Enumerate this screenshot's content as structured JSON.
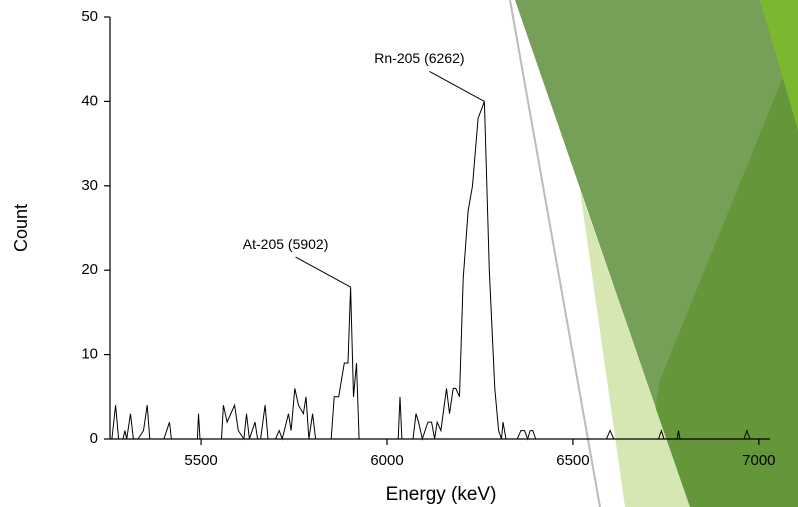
{
  "chart_data": {
    "type": "line",
    "xlabel": "Energy (keV)",
    "ylabel": "Count",
    "color": "#000000",
    "xlim": [
      5255,
      7030
    ],
    "ylim": [
      0,
      50
    ],
    "xticks": [
      5500,
      6000,
      6500,
      7000
    ],
    "yticks": [
      0,
      10,
      20,
      30,
      40,
      50
    ],
    "x": [
      5260,
      5270,
      5278,
      5290,
      5295,
      5300,
      5310,
      5318,
      5330,
      5345,
      5355,
      5362,
      5400,
      5415,
      5420,
      5490,
      5493,
      5497,
      5555,
      5560,
      5570,
      5590,
      5600,
      5615,
      5622,
      5630,
      5645,
      5652,
      5660,
      5672,
      5680,
      5700,
      5710,
      5718,
      5735,
      5742,
      5752,
      5762,
      5775,
      5782,
      5790,
      5800,
      5808,
      5850,
      5858,
      5870,
      5885,
      5895,
      5902,
      5910,
      5918,
      5925,
      5930,
      6030,
      6035,
      6040,
      6070,
      6078,
      6085,
      6095,
      6110,
      6120,
      6128,
      6135,
      6145,
      6160,
      6168,
      6178,
      6185,
      6195,
      6205,
      6218,
      6230,
      6245,
      6262,
      6275,
      6290,
      6300,
      6308,
      6312,
      6320,
      6350,
      6360,
      6370,
      6378,
      6385,
      6392,
      6400,
      6590,
      6600,
      6610,
      6730,
      6738,
      6745,
      6780,
      6784,
      6788,
      6960,
      6968,
      6976,
      7000
    ],
    "values": [
      0,
      4,
      0,
      0,
      1,
      0,
      3,
      0,
      0,
      1,
      4,
      0,
      0,
      2,
      0,
      0,
      3,
      0,
      0,
      4,
      2,
      4,
      1,
      0,
      3,
      0,
      2,
      0,
      0,
      4,
      0,
      0,
      1,
      0,
      3,
      1,
      6,
      4,
      3,
      5,
      0,
      3,
      0,
      0,
      5,
      5,
      9,
      9,
      18,
      5,
      9,
      0,
      0,
      0,
      5,
      0,
      0,
      3,
      2,
      0,
      2,
      2,
      0,
      2,
      1,
      6,
      3,
      6,
      6,
      5,
      19,
      27,
      30,
      38,
      40,
      20,
      6,
      1,
      0,
      2,
      0,
      0,
      1,
      1,
      0,
      1,
      1,
      0,
      0,
      1,
      0,
      0,
      1,
      0,
      0,
      1,
      0,
      0,
      1,
      0,
      0
    ],
    "annotations": [
      {
        "text": "Rn-205 (6262)",
        "x": 6262,
        "y": 40
      },
      {
        "text": "At-205 (5902)",
        "x": 5902,
        "y": 18
      }
    ]
  }
}
